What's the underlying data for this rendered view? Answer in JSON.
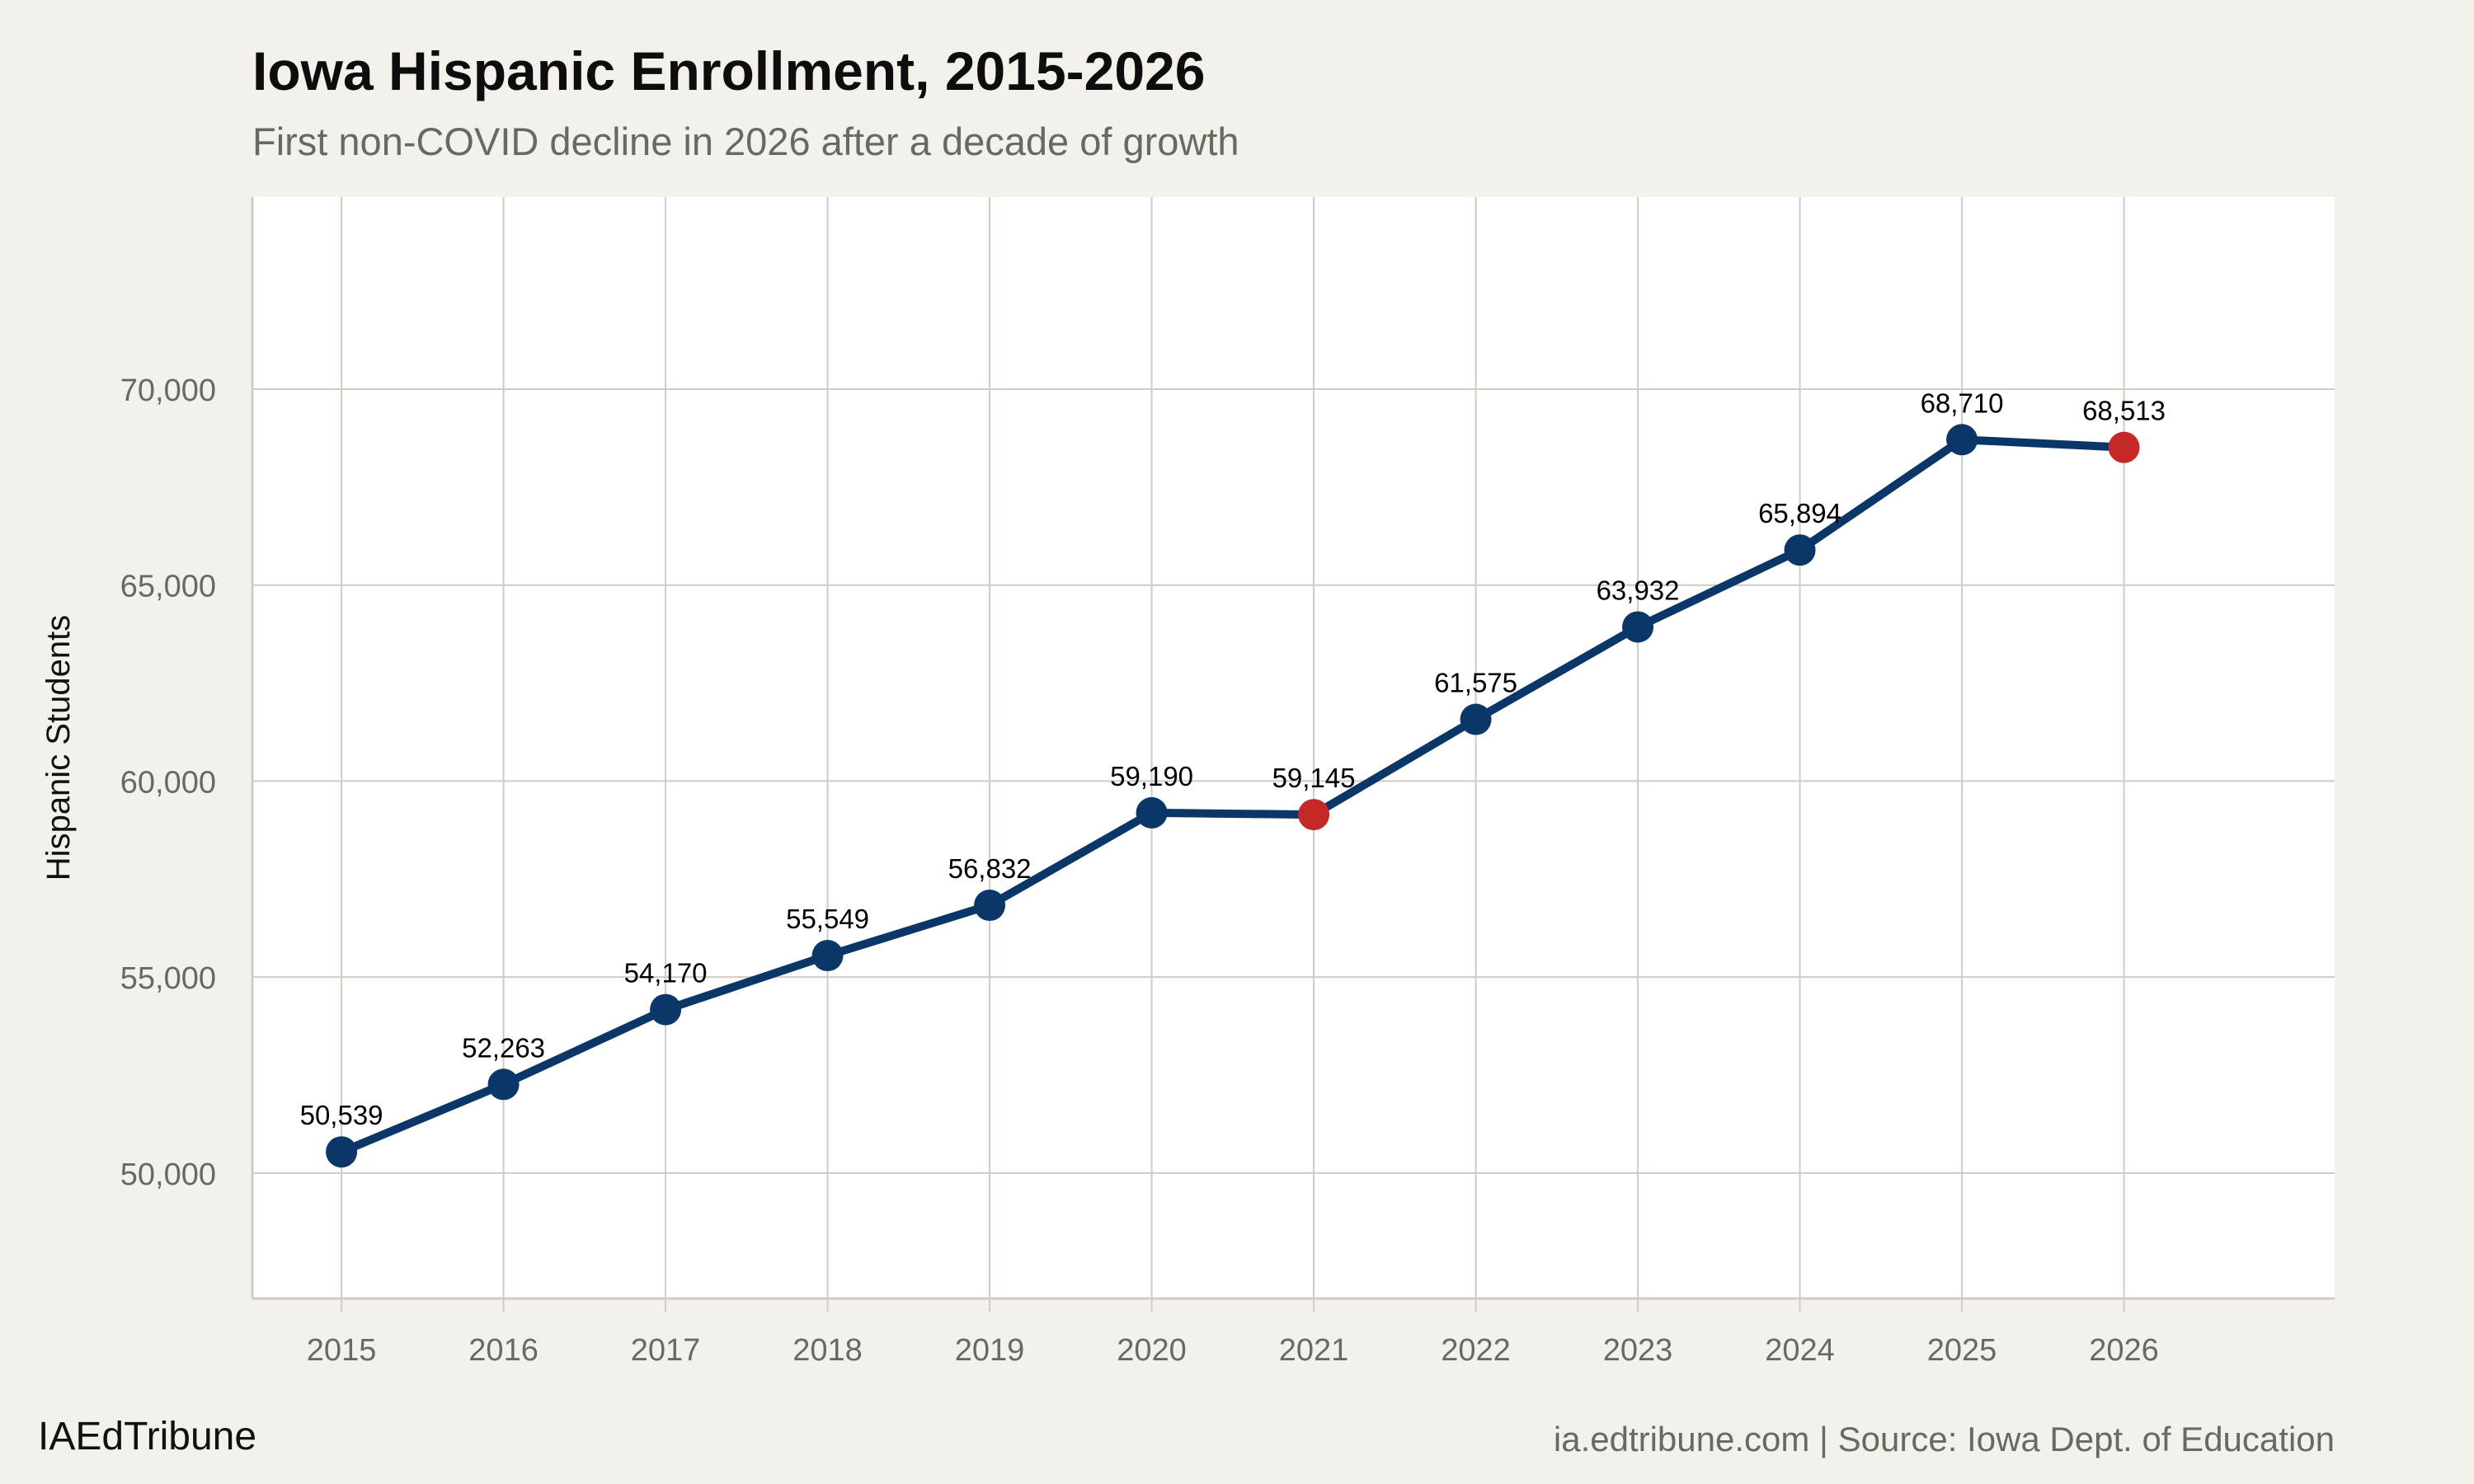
{
  "chart_data": {
    "type": "line",
    "title": "Iowa Hispanic Enrollment, 2015-2026",
    "subtitle": "First non-COVID decline in 2026 after a decade of growth",
    "xlabel": "",
    "ylabel": "Hispanic Students",
    "x": [
      2015,
      2016,
      2017,
      2018,
      2019,
      2020,
      2021,
      2022,
      2023,
      2024,
      2025,
      2026
    ],
    "values": [
      50539,
      52263,
      54170,
      55549,
      56832,
      59190,
      59145,
      61575,
      63932,
      65894,
      68710,
      68513
    ],
    "data_labels": [
      "50,539",
      "52,263",
      "54,170",
      "55,549",
      "56,832",
      "59,190",
      "59,145",
      "61,575",
      "63,932",
      "65,894",
      "68,710",
      "68,513"
    ],
    "highlighted_years": [
      2021,
      2026
    ],
    "yticks": [
      50000,
      55000,
      60000,
      65000,
      70000
    ],
    "ytick_labels": [
      "50,000",
      "55,000",
      "60,000",
      "65,000",
      "70,000"
    ],
    "xtick_labels": [
      "2015",
      "2016",
      "2017",
      "2018",
      "2019",
      "2020",
      "2021",
      "2022",
      "2023",
      "2024",
      "2025",
      "2026"
    ],
    "ylim": [
      46800,
      74900
    ],
    "xlim": [
      2014.45,
      2027.3
    ],
    "grid": true,
    "colors": {
      "line": "#0b3768",
      "highlight": "#c62828",
      "grid": "#d0cbc3",
      "background": "#f4f1ec",
      "panel": "#ffffff"
    }
  },
  "footer": {
    "brand": "IAEdTribune",
    "source": "ia.edtribune.com | Source: Iowa Dept. of Education"
  }
}
